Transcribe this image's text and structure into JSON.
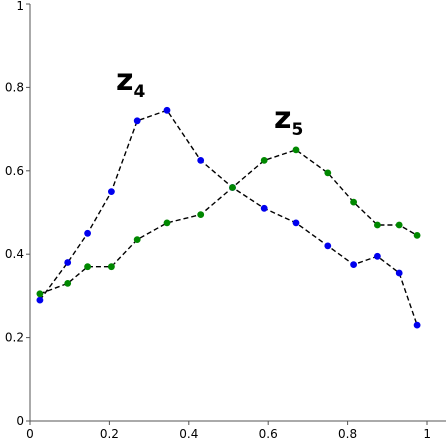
{
  "chart_data": {
    "type": "scatter",
    "xlim": [
      0,
      1
    ],
    "ylim": [
      0,
      1
    ],
    "x_ticks": [
      "0",
      "0.2",
      "0.4",
      "0.6",
      "0.8",
      "1"
    ],
    "y_ticks": [
      "0",
      "0.2",
      "0.4",
      "0.6",
      "0.8",
      "1"
    ],
    "grid": false,
    "line_style": "dashed",
    "series": [
      {
        "label_base": "z",
        "label_sub": "4",
        "color": "#0000ee",
        "x": [
          0.025,
          0.095,
          0.145,
          0.205,
          0.27,
          0.345,
          0.43,
          0.51,
          0.59,
          0.67,
          0.75,
          0.815,
          0.875,
          0.93,
          0.975
        ],
        "y": [
          0.29,
          0.38,
          0.45,
          0.55,
          0.72,
          0.745,
          0.625,
          0.56,
          0.51,
          0.475,
          0.42,
          0.375,
          0.395,
          0.355,
          0.23
        ]
      },
      {
        "label_base": "z",
        "label_sub": "5",
        "color": "#008800",
        "x": [
          0.025,
          0.095,
          0.145,
          0.205,
          0.27,
          0.345,
          0.43,
          0.51,
          0.59,
          0.67,
          0.75,
          0.815,
          0.875,
          0.93,
          0.975
        ],
        "y": [
          0.305,
          0.33,
          0.37,
          0.37,
          0.435,
          0.475,
          0.495,
          0.56,
          0.625,
          0.65,
          0.595,
          0.525,
          0.47,
          0.47,
          0.445
        ]
      }
    ]
  }
}
